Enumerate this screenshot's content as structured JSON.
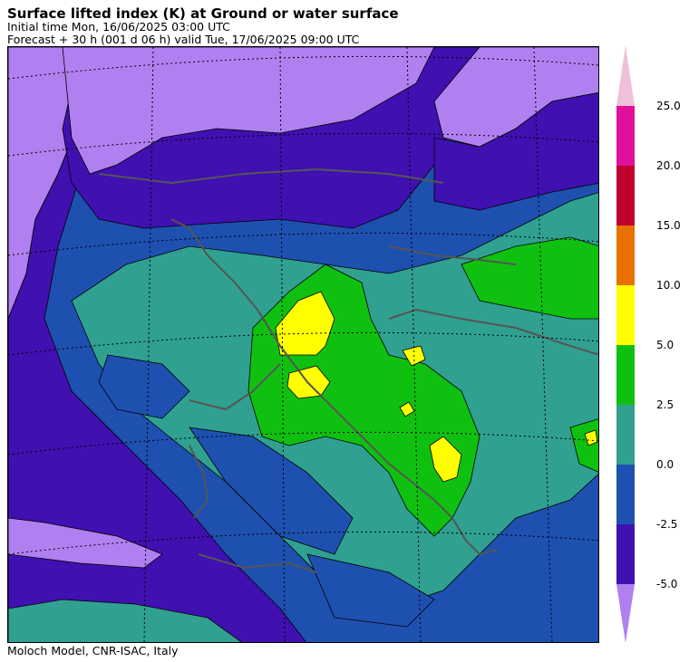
{
  "header": {
    "title": "Surface lifted index (K) at Ground or water surface",
    "initial_time": "Initial time  Mon, 16/06/2025  03:00 UTC",
    "forecast": "Forecast  +  30 h  (001 d 06 h)  valid Tue, 17/06/2025 09:00 UTC"
  },
  "footer": {
    "credit": "Moloch Model, CNR-ISAC, Italy"
  },
  "legend": {
    "ticks": [
      "25.0",
      "20.0",
      "15.0",
      "10.0",
      "5.0",
      "2.5",
      "0.0",
      "-2.5",
      "-5.0"
    ],
    "colors": {
      "above_25": "#f0c0d8",
      "c20_25": "#e0109a",
      "c15_20": "#c0002e",
      "c10_15": "#e87000",
      "c5_10": "#ffff00",
      "c2_5_5": "#10c010",
      "c0_2_5": "#30a090",
      "cm2_5_0": "#1e50b0",
      "cm5_m2_5": "#4010b0",
      "below_m5": "#b080f0"
    }
  },
  "map_colors": {
    "very_negative": "#b080f0",
    "negative": "#4010b0",
    "slightly_negative": "#1e50b0",
    "neutral": "#30a090",
    "positive": "#10c010",
    "high": "#ffff00",
    "coastline": "#555555",
    "graticule": "#000000"
  }
}
